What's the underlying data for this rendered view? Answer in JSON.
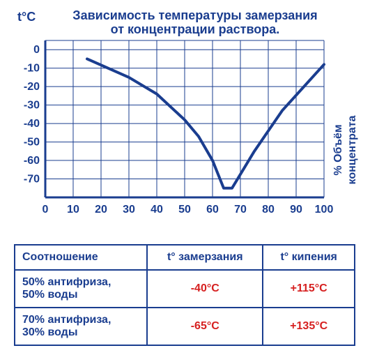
{
  "chart": {
    "type": "line",
    "title_line1": "Зависимость температуры замерзания",
    "title_line2": "от концентрации раствора.",
    "y_axis_label": "t°C",
    "x_axis_label_line1": "% Объём",
    "x_axis_label_line2": "концентрата",
    "title_fontsize": 18,
    "title_color": "#1a3d8f",
    "axis_color": "#1a3d8f",
    "grid_color": "#1a3d8f",
    "line_color": "#1a3d8f",
    "line_width": 4,
    "background_color": "#ffffff",
    "tick_fontsize": 16,
    "x_ticks": [
      0,
      10,
      20,
      30,
      40,
      50,
      60,
      70,
      80,
      90,
      100
    ],
    "y_ticks": [
      0,
      -10,
      -20,
      -30,
      -40,
      -50,
      -60,
      -70
    ],
    "xlim": [
      0,
      100
    ],
    "ylim": [
      -80,
      5
    ],
    "data_points": [
      {
        "x": 15,
        "y": -5
      },
      {
        "x": 30,
        "y": -15
      },
      {
        "x": 40,
        "y": -24
      },
      {
        "x": 50,
        "y": -38
      },
      {
        "x": 55,
        "y": -47
      },
      {
        "x": 60,
        "y": -60
      },
      {
        "x": 64,
        "y": -75
      },
      {
        "x": 67,
        "y": -75
      },
      {
        "x": 75,
        "y": -55
      },
      {
        "x": 85,
        "y": -33
      },
      {
        "x": 100,
        "y": -8
      }
    ]
  },
  "table": {
    "headers": {
      "ratio": "Соотношение",
      "freeze": "t° замерзания",
      "boil": "t° кипения"
    },
    "rows": [
      {
        "ratio_line1": "50% антифриза,",
        "ratio_line2": "50% воды",
        "freeze": "-40°С",
        "boil": "+115°С"
      },
      {
        "ratio_line1": "70% антифриза,",
        "ratio_line2": "30% воды",
        "freeze": "-65°С",
        "boil": "+135°С"
      }
    ],
    "header_color": "#1a3d8f",
    "value_color": "#d62020",
    "border_color": "#1a3d8f"
  }
}
